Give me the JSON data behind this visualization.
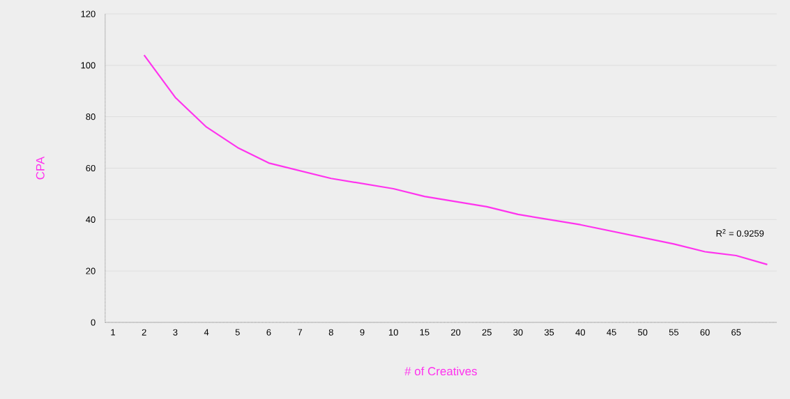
{
  "chart_data": {
    "type": "line",
    "xlabel": "# of Creatives",
    "ylabel": "CPA",
    "categories": [
      "1",
      "2",
      "3",
      "4",
      "5",
      "6",
      "7",
      "8",
      "9",
      "10",
      "15",
      "20",
      "25",
      "30",
      "35",
      "40",
      "45",
      "50",
      "55",
      "60",
      "65",
      null
    ],
    "series": [
      {
        "color": "#ff33ee",
        "values": [
          null,
          104,
          87.5,
          76,
          68,
          62,
          59,
          56,
          54,
          52,
          49,
          47,
          45,
          42,
          40,
          38,
          35.5,
          33,
          30.5,
          27.5,
          26,
          22.5
        ]
      }
    ],
    "ylim": [
      0,
      120
    ],
    "yticks": [
      0,
      20,
      40,
      60,
      80,
      100,
      120
    ],
    "grid": "y",
    "marker": "none",
    "line_style": "solid",
    "annotations": [
      "R$^{2}$ = 0.9259"
    ]
  }
}
